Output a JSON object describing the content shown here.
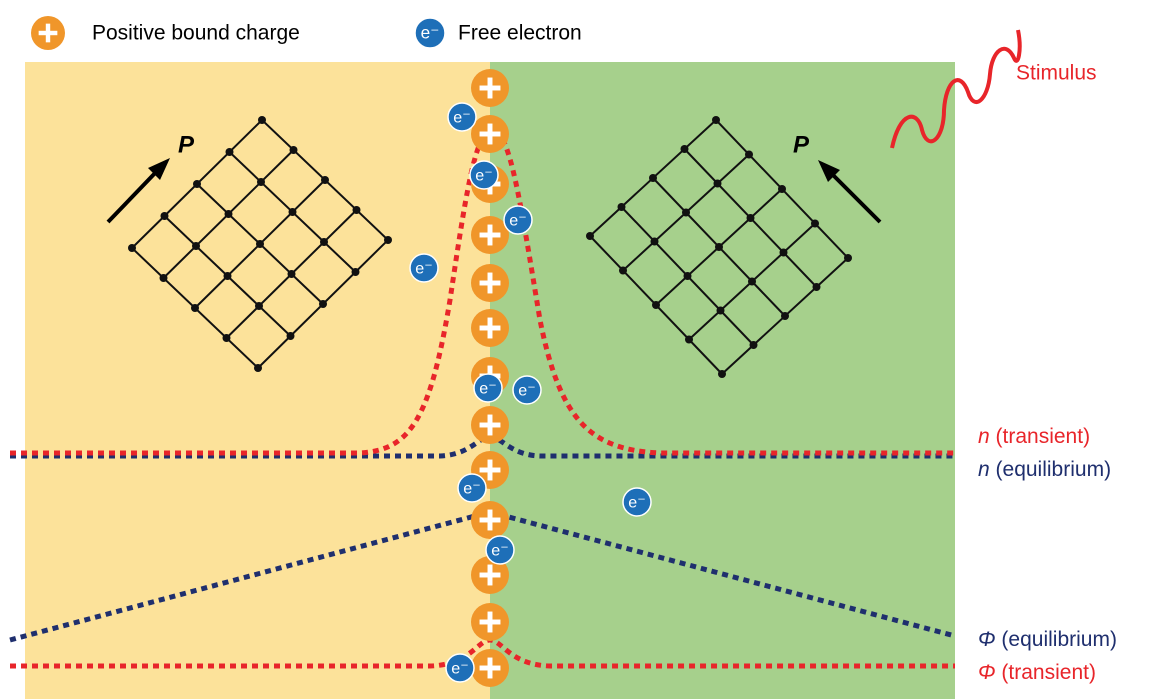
{
  "legend": [
    {
      "label": "Positive bound charge"
    },
    {
      "symbol": "e⁻",
      "label": "Free electron"
    }
  ],
  "stimulus": "Stimulus",
  "polarization_label": "P",
  "curves": [
    {
      "symbol": "n",
      "qualifier": "(transient)"
    },
    {
      "symbol": "n",
      "qualifier": "(equilibrium)"
    },
    {
      "symbol": "Φ",
      "qualifier": "(equilibrium)"
    },
    {
      "symbol": "Φ",
      "qualifier": "(transient)"
    }
  ]
}
